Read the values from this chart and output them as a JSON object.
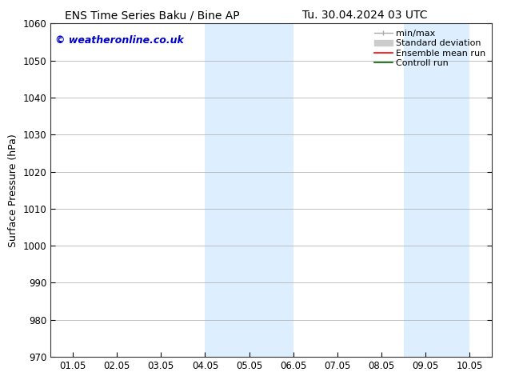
{
  "title_left": "ENS Time Series Baku / Bine AP",
  "title_right": "Tu. 30.04.2024 03 UTC",
  "ylabel": "Surface Pressure (hPa)",
  "ylim": [
    970,
    1060
  ],
  "yticks": [
    970,
    980,
    990,
    1000,
    1010,
    1020,
    1030,
    1040,
    1050,
    1060
  ],
  "xtick_labels": [
    "01.05",
    "02.05",
    "03.05",
    "04.05",
    "05.05",
    "06.05",
    "07.05",
    "08.05",
    "09.05",
    "10.05"
  ],
  "xtick_positions": [
    0,
    1,
    2,
    3,
    4,
    5,
    6,
    7,
    8,
    9
  ],
  "xlim": [
    -0.5,
    9.5
  ],
  "shaded_bands": [
    {
      "x_start": 3.0,
      "x_end": 5.0
    },
    {
      "x_start": 7.5,
      "x_end": 9.0
    }
  ],
  "shaded_color": "#ddeeff",
  "watermark_text": "© weatheronline.co.uk",
  "watermark_color": "#0000cc",
  "legend_entries": [
    {
      "label": "min/max",
      "color": "#aaaaaa",
      "lw": 1.0
    },
    {
      "label": "Standard deviation",
      "color": "#cccccc",
      "lw": 5
    },
    {
      "label": "Ensemble mean run",
      "color": "#ff0000",
      "lw": 1.2
    },
    {
      "label": "Controll run",
      "color": "#006600",
      "lw": 1.2
    }
  ],
  "bg_color": "#ffffff",
  "axes_bg_color": "#ffffff",
  "grid_color": "#aaaaaa",
  "spine_color": "#333333",
  "title_fontsize": 10,
  "tick_fontsize": 8.5,
  "ylabel_fontsize": 9,
  "watermark_fontsize": 9,
  "legend_fontsize": 8
}
